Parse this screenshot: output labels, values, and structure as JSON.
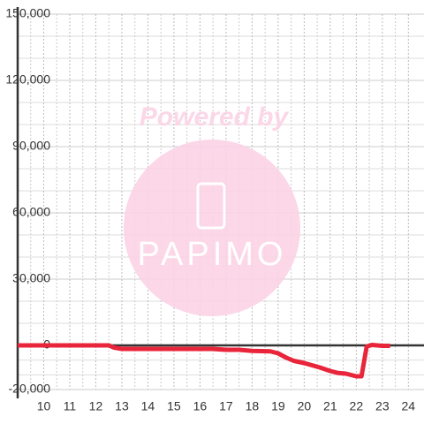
{
  "chart_data": {
    "type": "line",
    "watermark": {
      "top": "Powered by",
      "logo": "PAPIMO"
    },
    "x": [
      9,
      10,
      11,
      12,
      12.5,
      12.7,
      13,
      14,
      15,
      16,
      16.5,
      17,
      17.5,
      18,
      18.7,
      19,
      19.3,
      19.6,
      20,
      20.3,
      20.6,
      21,
      21.3,
      21.6,
      22,
      22.2,
      22.4,
      22.6,
      23,
      23.3
    ],
    "values": [
      0,
      0,
      0,
      0,
      0,
      -1000,
      -1600,
      -1600,
      -1600,
      -1600,
      -1600,
      -2000,
      -2000,
      -2500,
      -2700,
      -3600,
      -5500,
      -7000,
      -8000,
      -9000,
      -10000,
      -11600,
      -12500,
      -12800,
      -14000,
      -14000,
      -500,
      200,
      -200,
      -200
    ],
    "color": "#e8253a",
    "xlim": [
      9,
      24.6
    ],
    "xticks": [
      10,
      11,
      12,
      13,
      14,
      15,
      16,
      17,
      18,
      19,
      20,
      21,
      22,
      23,
      24
    ],
    "ylim": [
      -20000,
      150000
    ],
    "yticks": [
      {
        "value": -20000,
        "label": "-20,000"
      },
      0,
      {
        "value": 30000,
        "label": "30,000"
      },
      {
        "value": 60000,
        "label": "60,000"
      },
      {
        "value": 90000,
        "label": "90,000"
      },
      {
        "value": 120000,
        "label": "120,000"
      },
      {
        "value": 150000,
        "label": "150,000"
      }
    ],
    "grid": true
  }
}
